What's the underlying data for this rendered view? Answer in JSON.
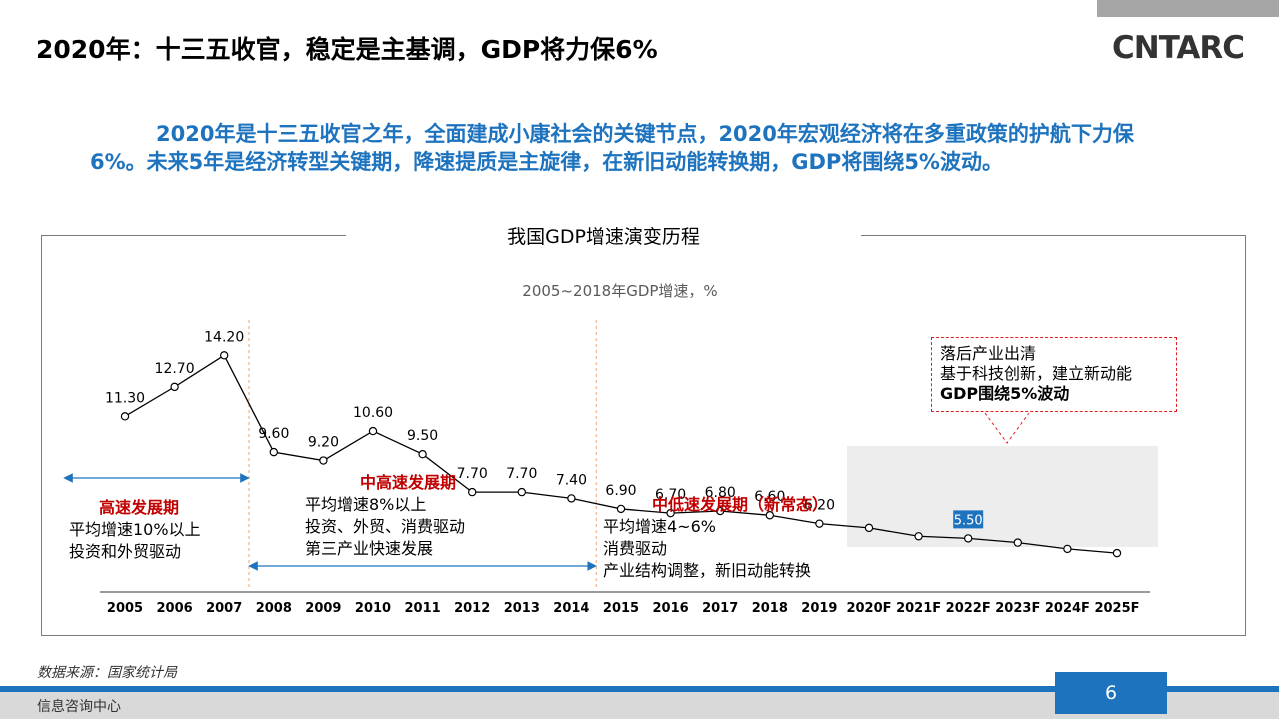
{
  "slide": {
    "title": "2020年：十三五收官，稳定是主基调，GDP将力保6%",
    "logo": "CNTARC",
    "intro": "2020年是十三五收官之年，全面建成小康社会的关键节点，2020年宏观经济将在多重政策的护航下力保6%。未来5年是经济转型关键期，降速提质是主旋律，在新旧动能转换期，GDP将围绕5%波动。",
    "chart_title": "我国GDP增速演变历程",
    "chart_subtitle": "2005~2018年GDP增速，%",
    "source": "数据来源：国家统计局",
    "footer": "信息咨询中心",
    "page": "6"
  },
  "phases": [
    {
      "title": "高速发展期",
      "lines": [
        "平均增速10%以上",
        "投资和外贸驱动"
      ]
    },
    {
      "title": "中高速发展期",
      "lines": [
        "平均增速8%以上",
        "投资、外贸、消费驱动",
        "第三产业快速发展"
      ]
    },
    {
      "title": "中低速发展期（新常态）",
      "lines": [
        "平均增速4~6%",
        "消费驱动",
        "产业结构调整，新旧动能转换"
      ]
    }
  ],
  "callout": {
    "lines": [
      "落后产业出清",
      "基于科技创新，建立新动能"
    ],
    "bold": "GDP围绕5%波动"
  },
  "colors": {
    "accent": "#1e73be",
    "phase_title": "#c00000",
    "forecast_band": "#ededed"
  },
  "chart_data": {
    "type": "line",
    "categories": [
      "2005",
      "2006",
      "2007",
      "2008",
      "2009",
      "2010",
      "2011",
      "2012",
      "2013",
      "2014",
      "2015",
      "2016",
      "2017",
      "2018",
      "2019",
      "2020F",
      "2021F",
      "2022F",
      "2023F",
      "2024F",
      "2025F"
    ],
    "values": [
      11.3,
      12.7,
      14.2,
      9.6,
      9.2,
      10.6,
      9.5,
      7.7,
      7.7,
      7.4,
      6.9,
      6.7,
      6.8,
      6.6,
      6.2,
      6.0,
      5.6,
      5.5,
      5.3,
      5.0,
      4.8
    ],
    "labels": [
      "11.30",
      "12.70",
      "14.20",
      "9.60",
      "9.20",
      "10.60",
      "9.50",
      "7.70",
      "7.70",
      "7.40",
      "6.90",
      "6.70",
      "6.80",
      "6.60",
      "6.20",
      "",
      "",
      "5.50",
      "",
      "",
      ""
    ],
    "highlight_label_index": 17,
    "forecast_start_index": 15,
    "divider_after": [
      "2007",
      "2014"
    ],
    "ylim": [
      3,
      14.5
    ]
  }
}
